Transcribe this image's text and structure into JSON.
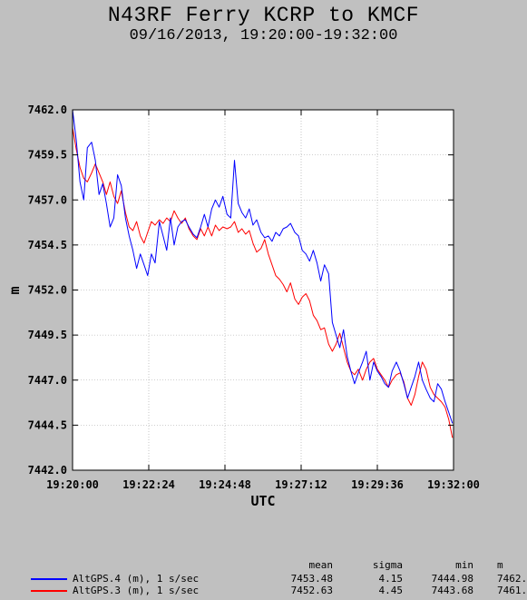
{
  "chart_data": {
    "type": "line",
    "title": "N43RF Ferry KCRP to KMCF",
    "subtitle": "09/16/2013, 19:20:00-19:32:00",
    "xlabel": "UTC",
    "ylabel": "m",
    "xlim": [
      "19:20:00",
      "19:32:00"
    ],
    "ylim": [
      7442.0,
      7462.0
    ],
    "x_ticks": [
      "19:20:00",
      "19:22:24",
      "19:24:48",
      "19:27:12",
      "19:29:36",
      "19:32:00"
    ],
    "y_ticks": [
      "7442.0",
      "7444.5",
      "7447.0",
      "7449.5",
      "7452.0",
      "7454.5",
      "7457.0",
      "7459.5",
      "7462.0"
    ],
    "grid": true,
    "legend_position": "bottom-left",
    "series": [
      {
        "name": "AltGPS.4 (m), 1 s/sec",
        "color": "#0000ff",
        "x": [
          "19:20:00",
          "19:20:07",
          "19:20:14",
          "19:20:21",
          "19:20:28",
          "19:20:36",
          "19:20:43",
          "19:20:50",
          "19:20:57",
          "19:21:04",
          "19:21:11",
          "19:21:18",
          "19:21:25",
          "19:21:32",
          "19:21:40",
          "19:21:47",
          "19:21:54",
          "19:22:01",
          "19:22:08",
          "19:22:15",
          "19:22:22",
          "19:22:29",
          "19:22:36",
          "19:22:44",
          "19:22:51",
          "19:22:58",
          "19:23:05",
          "19:23:12",
          "19:23:19",
          "19:23:26",
          "19:23:33",
          "19:23:40",
          "19:23:48",
          "19:23:55",
          "19:24:02",
          "19:24:09",
          "19:24:16",
          "19:24:23",
          "19:24:30",
          "19:24:37",
          "19:24:44",
          "19:24:52",
          "19:24:59",
          "19:25:06",
          "19:25:13",
          "19:25:20",
          "19:25:27",
          "19:25:34",
          "19:25:41",
          "19:25:48",
          "19:25:56",
          "19:26:03",
          "19:26:10",
          "19:26:17",
          "19:26:24",
          "19:26:31",
          "19:26:38",
          "19:26:45",
          "19:26:52",
          "19:27:00",
          "19:27:07",
          "19:27:14",
          "19:27:21",
          "19:27:28",
          "19:27:35",
          "19:27:42",
          "19:27:49",
          "19:27:56",
          "19:28:04",
          "19:28:11",
          "19:28:18",
          "19:28:25",
          "19:28:32",
          "19:28:39",
          "19:28:46",
          "19:28:53",
          "19:29:00",
          "19:29:08",
          "19:29:15",
          "19:29:22",
          "19:29:29",
          "19:29:36",
          "19:29:43",
          "19:29:50",
          "19:29:57",
          "19:30:04",
          "19:30:12",
          "19:30:19",
          "19:30:26",
          "19:30:33",
          "19:30:40",
          "19:30:47",
          "19:30:54",
          "19:31:01",
          "19:31:08",
          "19:31:16",
          "19:31:23",
          "19:31:30",
          "19:31:37",
          "19:31:44",
          "19:31:51",
          "19:31:58"
        ],
        "values": [
          7462.0,
          7460.3,
          7458.0,
          7457.0,
          7459.9,
          7460.2,
          7459.2,
          7457.3,
          7457.9,
          7456.8,
          7455.5,
          7456.0,
          7458.4,
          7457.8,
          7456.0,
          7455.0,
          7454.2,
          7453.2,
          7454.0,
          7453.4,
          7452.8,
          7454.0,
          7453.5,
          7455.8,
          7455.0,
          7454.2,
          7456.0,
          7454.5,
          7455.5,
          7455.8,
          7455.9,
          7455.5,
          7455.1,
          7454.9,
          7455.5,
          7456.2,
          7455.5,
          7456.5,
          7457.0,
          7456.6,
          7457.2,
          7456.2,
          7456.0,
          7459.2,
          7456.8,
          7456.3,
          7456.0,
          7456.5,
          7455.6,
          7455.9,
          7455.2,
          7454.9,
          7455.0,
          7454.7,
          7455.2,
          7455.0,
          7455.4,
          7455.5,
          7455.7,
          7455.2,
          7455.0,
          7454.2,
          7454.0,
          7453.6,
          7454.2,
          7453.5,
          7452.5,
          7453.4,
          7452.9,
          7450.2,
          7449.5,
          7448.8,
          7449.8,
          7448.3,
          7447.5,
          7446.8,
          7447.4,
          7448.0,
          7448.6,
          7447.0,
          7448.0,
          7447.5,
          7447.2,
          7446.8,
          7446.6,
          7447.5,
          7448.0,
          7447.5,
          7446.8,
          7446.0,
          7446.6,
          7447.2,
          7448.0,
          7447.0,
          7446.5,
          7446.0,
          7445.8,
          7446.8,
          7446.5,
          7445.8,
          7445.2,
          7444.6
        ]
      },
      {
        "name": "AltGPS.3 (m), 1 s/sec",
        "color": "#ff0000",
        "x": [
          "19:20:00",
          "19:20:07",
          "19:20:14",
          "19:20:21",
          "19:20:28",
          "19:20:36",
          "19:20:43",
          "19:20:50",
          "19:20:57",
          "19:21:04",
          "19:21:11",
          "19:21:18",
          "19:21:25",
          "19:21:32",
          "19:21:40",
          "19:21:47",
          "19:21:54",
          "19:22:01",
          "19:22:08",
          "19:22:15",
          "19:22:22",
          "19:22:29",
          "19:22:36",
          "19:22:44",
          "19:22:51",
          "19:22:58",
          "19:23:05",
          "19:23:12",
          "19:23:19",
          "19:23:26",
          "19:23:33",
          "19:23:40",
          "19:23:48",
          "19:23:55",
          "19:24:02",
          "19:24:09",
          "19:24:16",
          "19:24:23",
          "19:24:30",
          "19:24:37",
          "19:24:44",
          "19:24:52",
          "19:24:59",
          "19:25:06",
          "19:25:13",
          "19:25:20",
          "19:25:27",
          "19:25:34",
          "19:25:41",
          "19:25:48",
          "19:25:56",
          "19:26:03",
          "19:26:10",
          "19:26:17",
          "19:26:24",
          "19:26:31",
          "19:26:38",
          "19:26:45",
          "19:26:52",
          "19:27:00",
          "19:27:07",
          "19:27:14",
          "19:27:21",
          "19:27:28",
          "19:27:35",
          "19:27:42",
          "19:27:49",
          "19:27:56",
          "19:28:04",
          "19:28:11",
          "19:28:18",
          "19:28:25",
          "19:28:32",
          "19:28:39",
          "19:28:46",
          "19:28:53",
          "19:29:00",
          "19:29:08",
          "19:29:15",
          "19:29:22",
          "19:29:29",
          "19:29:36",
          "19:29:43",
          "19:29:50",
          "19:29:57",
          "19:30:04",
          "19:30:12",
          "19:30:19",
          "19:30:26",
          "19:30:33",
          "19:30:40",
          "19:30:47",
          "19:30:54",
          "19:31:01",
          "19:31:08",
          "19:31:16",
          "19:31:23",
          "19:31:30",
          "19:31:37",
          "19:31:44",
          "19:31:51",
          "19:31:58"
        ],
        "values": [
          7461.0,
          7459.8,
          7458.8,
          7458.2,
          7458.0,
          7458.5,
          7459.0,
          7458.5,
          7458.0,
          7457.3,
          7458.0,
          7457.2,
          7456.8,
          7457.5,
          7456.3,
          7455.5,
          7455.3,
          7455.8,
          7455.0,
          7454.6,
          7455.2,
          7455.8,
          7455.6,
          7455.9,
          7455.7,
          7456.0,
          7455.8,
          7456.4,
          7456.0,
          7455.7,
          7456.0,
          7455.4,
          7455.0,
          7454.8,
          7455.4,
          7455.0,
          7455.5,
          7455.0,
          7455.6,
          7455.3,
          7455.5,
          7455.4,
          7455.5,
          7455.8,
          7455.2,
          7455.4,
          7455.1,
          7455.3,
          7454.6,
          7454.1,
          7454.3,
          7454.8,
          7454.0,
          7453.4,
          7452.8,
          7452.6,
          7452.3,
          7451.9,
          7452.4,
          7451.5,
          7451.2,
          7451.6,
          7451.8,
          7451.4,
          7450.6,
          7450.3,
          7449.8,
          7449.9,
          7449.0,
          7448.6,
          7449.0,
          7449.6,
          7448.8,
          7448.0,
          7447.5,
          7447.3,
          7447.6,
          7447.0,
          7447.6,
          7448.0,
          7448.2,
          7447.6,
          7447.3,
          7447.0,
          7446.6,
          7447.0,
          7447.3,
          7447.4,
          7446.9,
          7446.0,
          7445.6,
          7446.2,
          7447.2,
          7448.0,
          7447.6,
          7446.6,
          7446.2,
          7446.0,
          7445.8,
          7445.5,
          7444.8,
          7443.8
        ]
      }
    ]
  },
  "stats": {
    "headers": {
      "mean": "mean",
      "sigma": "sigma",
      "min": "min",
      "max": "m"
    },
    "rows": [
      {
        "label": "AltGPS.4 (m), 1 s/sec",
        "color": "#0000ff",
        "mean": "7453.48",
        "sigma": "4.15",
        "min": "7444.98",
        "max": "7462."
      },
      {
        "label": "AltGPS.3 (m), 1 s/sec",
        "color": "#ff0000",
        "mean": "7452.63",
        "sigma": "4.45",
        "min": "7443.68",
        "max": "7461."
      }
    ]
  }
}
